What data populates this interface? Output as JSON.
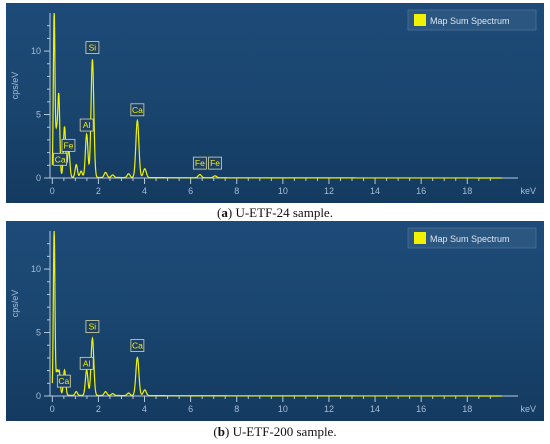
{
  "captions": [
    {
      "tag": "a",
      "text": "U-ETF-24 sample."
    },
    {
      "tag": "b",
      "text": "U-ETF-200 sample."
    }
  ],
  "colors": {
    "background": "#1a4670",
    "spectrum": "#f2f200",
    "axis": "#b9c9dc",
    "tick_label": "#a9bdd3",
    "legend_bg": "#2b5680"
  },
  "chart_data": [
    {
      "type": "line",
      "legend": [
        "Map Sum Spectrum"
      ],
      "legend_position": "top-right",
      "xlabel": "keV",
      "ylabel": "cps/eV",
      "xlim": [
        -0.1,
        20.2
      ],
      "ylim": [
        0,
        13
      ],
      "xticks": [
        0,
        2,
        4,
        6,
        8,
        10,
        12,
        14,
        16,
        18
      ],
      "yticks": [
        0,
        5,
        10
      ],
      "peaks": [
        {
          "x": 0.08,
          "y": 13.0,
          "w": 0.035
        },
        {
          "x": 0.18,
          "y": 3.2,
          "w": 0.04
        },
        {
          "x": 0.28,
          "y": 6.5,
          "w": 0.045
        },
        {
          "x": 0.53,
          "y": 4.0,
          "w": 0.05
        },
        {
          "x": 0.71,
          "y": 2.2,
          "w": 0.05
        },
        {
          "x": 1.04,
          "y": 1.0,
          "w": 0.05
        },
        {
          "x": 1.25,
          "y": 0.5,
          "w": 0.05
        },
        {
          "x": 1.49,
          "y": 3.4,
          "w": 0.055
        },
        {
          "x": 1.74,
          "y": 9.3,
          "w": 0.06
        },
        {
          "x": 2.31,
          "y": 0.4,
          "w": 0.06
        },
        {
          "x": 2.62,
          "y": 0.2,
          "w": 0.06
        },
        {
          "x": 3.31,
          "y": 0.3,
          "w": 0.06
        },
        {
          "x": 3.69,
          "y": 4.5,
          "w": 0.065
        },
        {
          "x": 4.01,
          "y": 0.7,
          "w": 0.065
        },
        {
          "x": 6.4,
          "y": 0.25,
          "w": 0.07
        },
        {
          "x": 7.06,
          "y": 0.15,
          "w": 0.07
        }
      ],
      "annotations": [
        {
          "label": "Ca",
          "x": 0.34,
          "y": 1.0
        },
        {
          "label": "Fe",
          "x": 0.7,
          "y": 2.1
        },
        {
          "label": "Al",
          "x": 1.49,
          "y": 3.7
        },
        {
          "label": "Si",
          "x": 1.74,
          "y": 9.8
        },
        {
          "label": "Ca",
          "x": 3.69,
          "y": 4.9
        },
        {
          "label": "Fe",
          "x": 6.4,
          "y": 0.7
        },
        {
          "label": "Fe",
          "x": 7.06,
          "y": 0.7
        }
      ]
    },
    {
      "type": "line",
      "legend": [
        "Map Sum Spectrum"
      ],
      "legend_position": "top-right",
      "xlabel": "keV",
      "ylabel": "cps/eV",
      "xlim": [
        -0.1,
        20.2
      ],
      "ylim": [
        0,
        13
      ],
      "xticks": [
        0,
        2,
        4,
        6,
        8,
        10,
        12,
        14,
        16,
        18
      ],
      "yticks": [
        0,
        5,
        10
      ],
      "peaks": [
        {
          "x": 0.08,
          "y": 13.0,
          "w": 0.035
        },
        {
          "x": 0.2,
          "y": 1.8,
          "w": 0.04
        },
        {
          "x": 0.3,
          "y": 1.9,
          "w": 0.045
        },
        {
          "x": 0.53,
          "y": 2.0,
          "w": 0.05
        },
        {
          "x": 1.04,
          "y": 0.3,
          "w": 0.05
        },
        {
          "x": 1.49,
          "y": 2.0,
          "w": 0.055
        },
        {
          "x": 1.74,
          "y": 4.5,
          "w": 0.06
        },
        {
          "x": 2.31,
          "y": 0.3,
          "w": 0.06
        },
        {
          "x": 2.62,
          "y": 0.15,
          "w": 0.06
        },
        {
          "x": 3.31,
          "y": 0.2,
          "w": 0.06
        },
        {
          "x": 3.69,
          "y": 3.0,
          "w": 0.065
        },
        {
          "x": 4.01,
          "y": 0.45,
          "w": 0.065
        }
      ],
      "annotations": [
        {
          "label": "Ca",
          "x": 0.5,
          "y": 0.7
        },
        {
          "label": "Al",
          "x": 1.49,
          "y": 2.1
        },
        {
          "label": "Si",
          "x": 1.74,
          "y": 5.0
        },
        {
          "label": "Ca",
          "x": 3.69,
          "y": 3.5
        }
      ]
    }
  ]
}
